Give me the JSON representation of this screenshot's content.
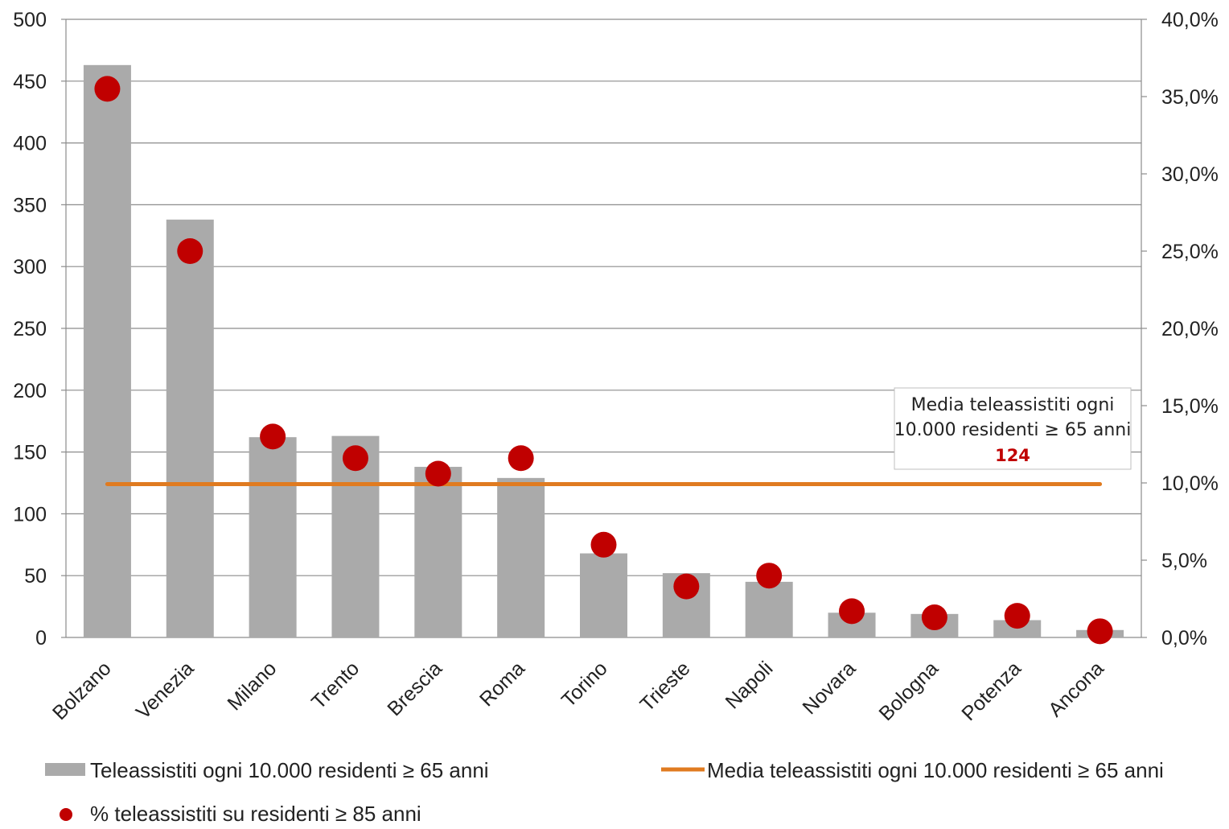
{
  "chart_data": {
    "type": "bar",
    "title": "",
    "categories": [
      "Bolzano",
      "Venezia",
      "Milano",
      "Trento",
      "Brescia",
      "Roma",
      "Torino",
      "Trieste",
      "Napoli",
      "Novara",
      "Bologna",
      "Potenza",
      "Ancona"
    ],
    "series": [
      {
        "name": "Teleassistiti ogni 10.000 residenti ≥ 65 anni",
        "type": "bar",
        "axis": "left",
        "color": "#aaaaaa",
        "values": [
          463,
          338,
          162,
          163,
          138,
          129,
          68,
          52,
          45,
          20,
          19,
          14,
          6
        ]
      },
      {
        "name": "% teleassistiti su residenti ≥ 85 anni",
        "type": "scatter",
        "axis": "right",
        "color": "#c00000",
        "values": [
          35.5,
          25.0,
          13.0,
          11.6,
          10.6,
          11.6,
          6.0,
          3.3,
          4.0,
          1.7,
          1.3,
          1.4,
          0.4
        ]
      },
      {
        "name": "Media teleassistiti ogni 10.000 residenti  ≥ 65 anni",
        "type": "line",
        "axis": "left",
        "color": "#e07b20",
        "value": 124
      }
    ],
    "y_left": {
      "min": 0,
      "max": 500,
      "step": 50,
      "ticks": [
        "0",
        "50",
        "100",
        "150",
        "200",
        "250",
        "300",
        "350",
        "400",
        "450",
        "500"
      ]
    },
    "y_right": {
      "min": 0,
      "max": 40,
      "step": 5,
      "ticks": [
        "0,0%",
        "5,0%",
        "10,0%",
        "15,0%",
        "20,0%",
        "25,0%",
        "30,0%",
        "35,0%",
        "40,0%"
      ]
    },
    "grid": true,
    "legend_position": "bottom",
    "annotation": {
      "line1": "Media teleassistiti ogni",
      "line2": "10.000 residenti  ≥ 65 anni",
      "value": "124"
    }
  }
}
